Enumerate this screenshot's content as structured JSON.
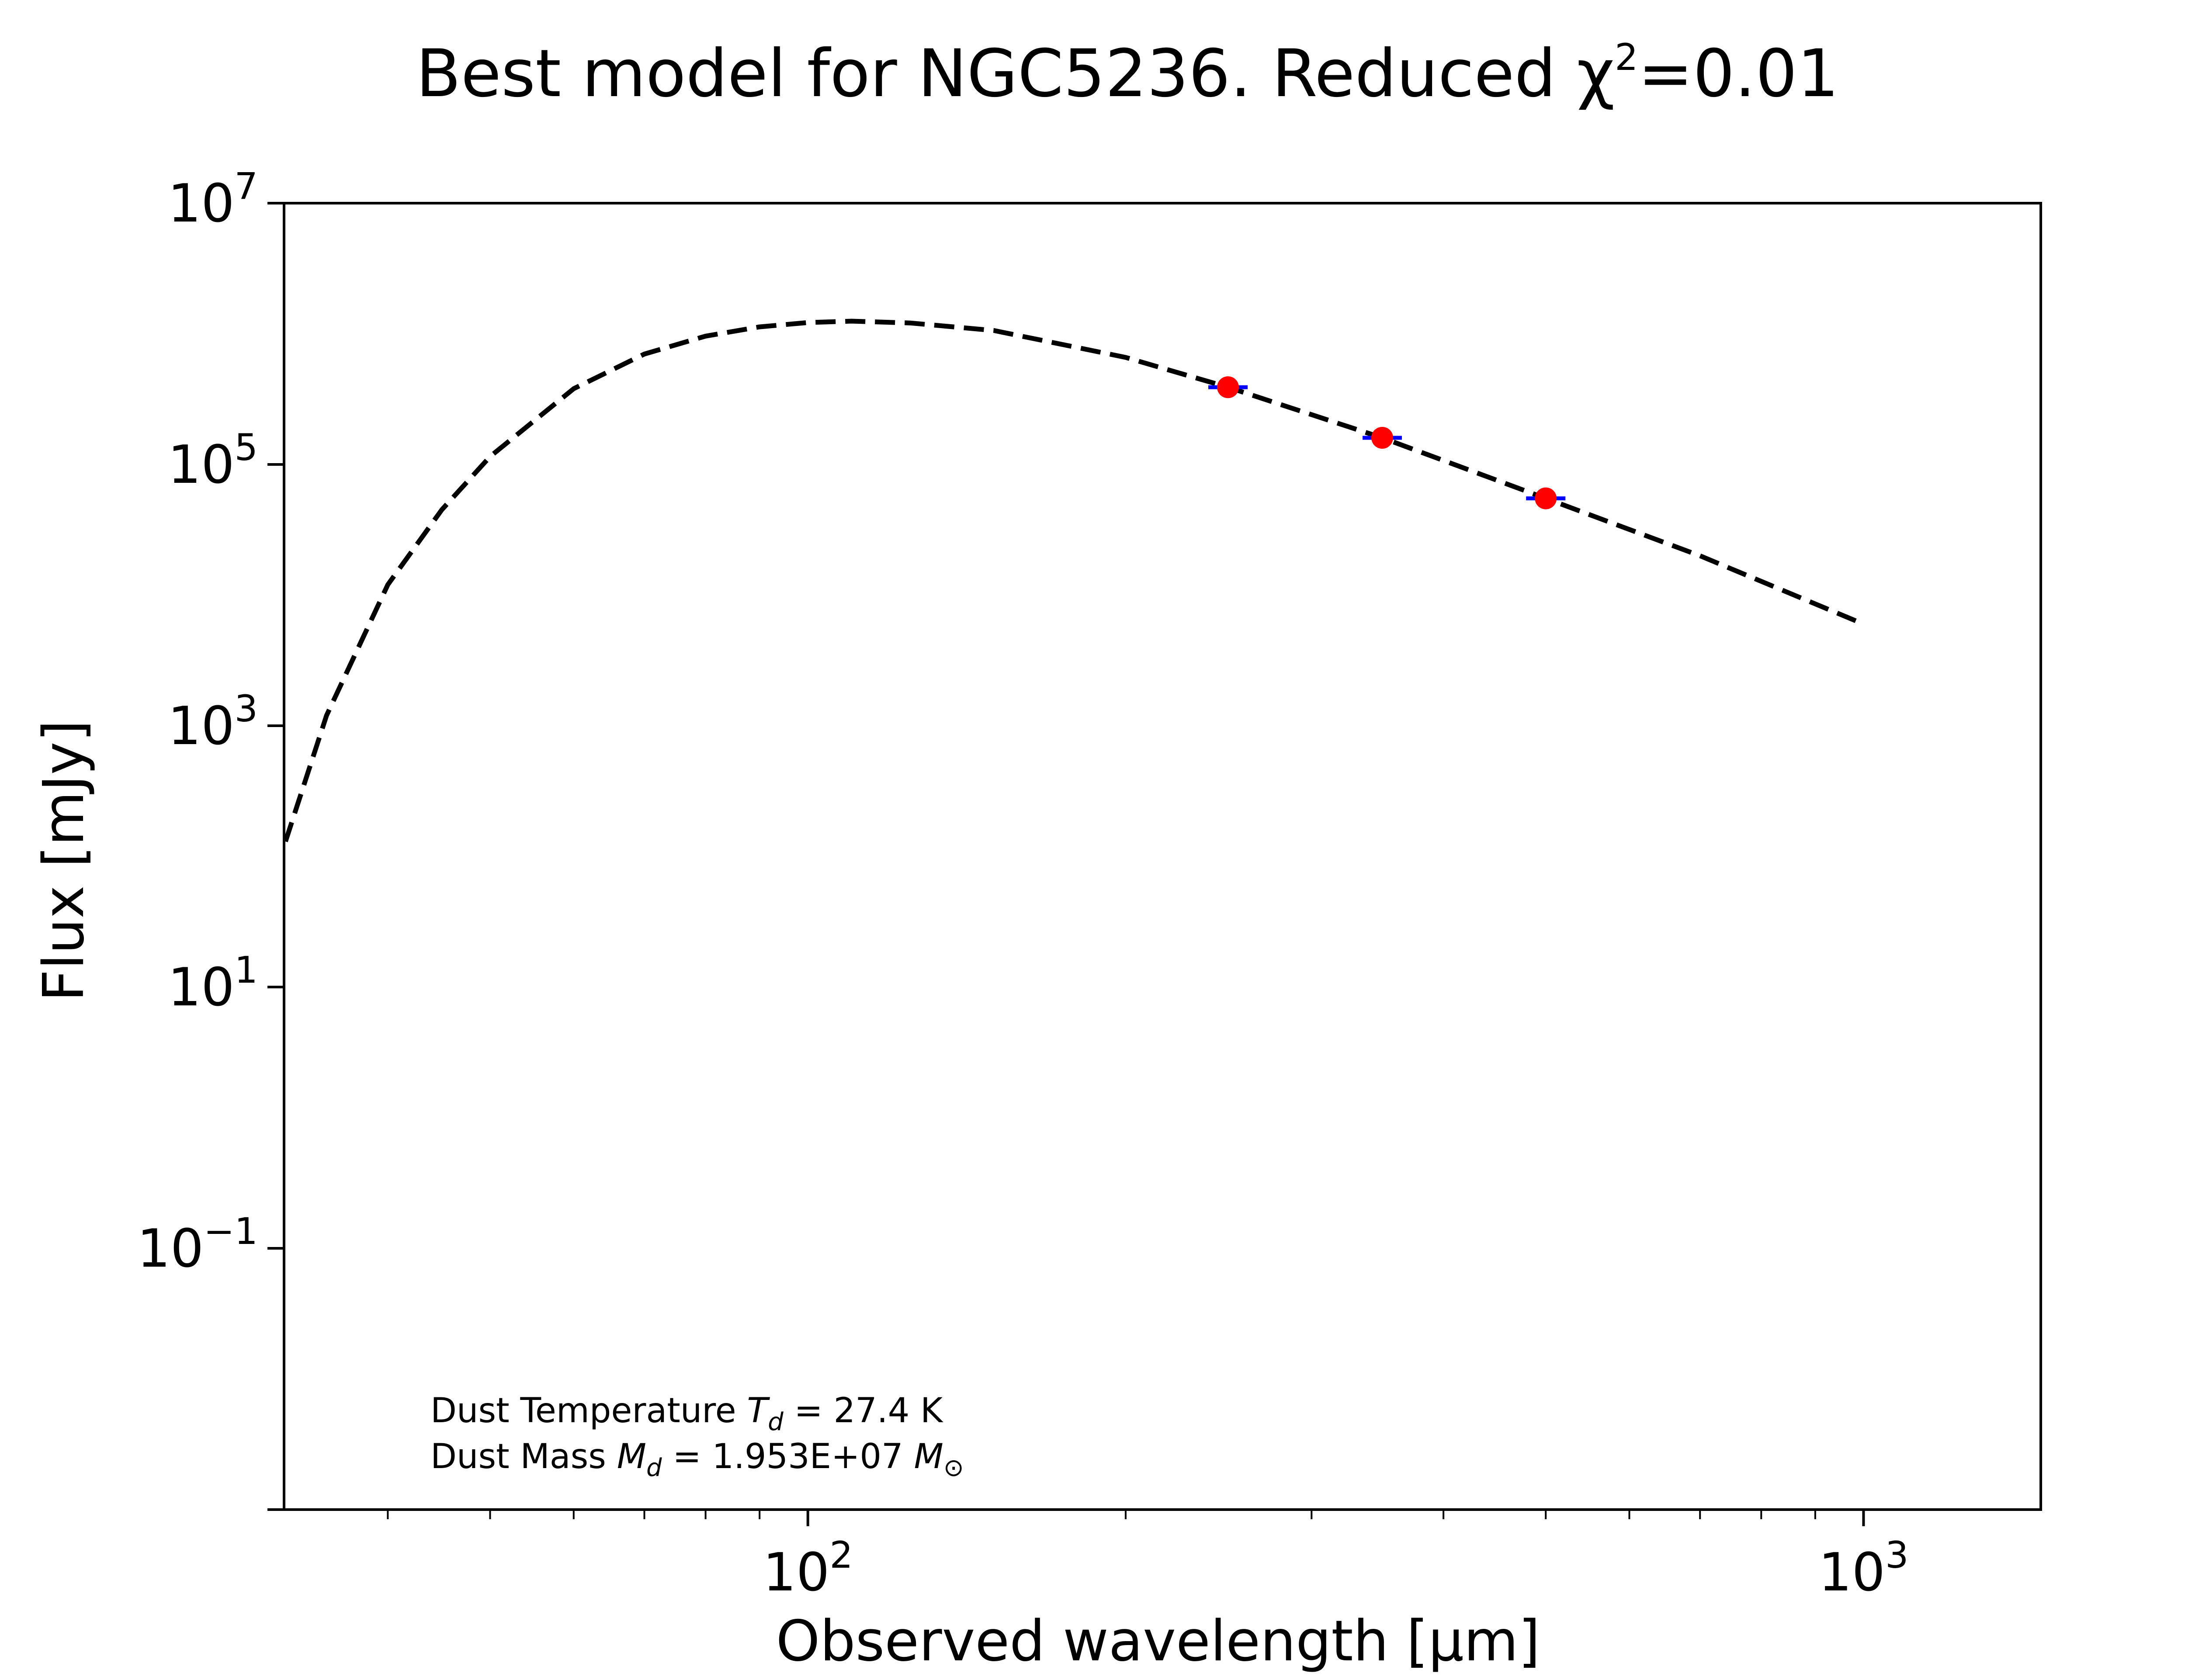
{
  "chart_data": {
    "type": "scatter",
    "title": "Best model for NGC5236. Reduced χ²=0.01",
    "title_parts": {
      "main": "Best model for NGC5236. Reduced χ",
      "sup": "2",
      "tail": "=0.01"
    },
    "xlabel": "Observed wavelength [μm]",
    "ylabel": "Flux [mJy]",
    "x_scale": "log",
    "y_scale": "log",
    "xlim": [
      31.9,
      1472
    ],
    "ylim": [
      0.001,
      10000000
    ],
    "grid": false,
    "x_ticks": [
      {
        "value": 100,
        "base": "10",
        "exp": "2"
      },
      {
        "value": 1000,
        "base": "10",
        "exp": "3"
      }
    ],
    "x_minor_ticks": [
      40,
      50,
      60,
      70,
      80,
      90,
      200,
      300,
      400,
      500,
      600,
      700,
      800,
      900
    ],
    "y_ticks": [
      {
        "value": 10000000,
        "base": "10",
        "exp": "7"
      },
      {
        "value": 100000,
        "base": "10",
        "exp": "5"
      },
      {
        "value": 1000,
        "base": "10",
        "exp": "3"
      },
      {
        "value": 10,
        "base": "10",
        "exp": "1"
      },
      {
        "value": 0.1,
        "base": "10",
        "exp": "−1"
      }
    ],
    "model_curve": {
      "style": "dashed",
      "color": "#000000",
      "x": [
        32,
        35,
        40,
        45,
        50,
        60,
        70,
        80,
        90,
        100,
        110,
        125,
        150,
        200,
        250,
        350,
        500,
        700,
        1000
      ],
      "y": [
        130,
        1200,
        12000,
        45000,
        115000,
        380000,
        700000,
        960000,
        1130000,
        1220000,
        1250000,
        1210000,
        1060000,
        660000,
        390000,
        160000,
        55000,
        20000,
        6000
      ]
    },
    "series": [
      {
        "marker_color": "#ff0000",
        "errorbar_color": "#0000ff",
        "x": [
          250,
          350,
          500
        ],
        "y": [
          390000,
          160000,
          55000
        ]
      }
    ],
    "annotations": [
      {
        "prefix": "Dust Temperature ",
        "sym": "T",
        "sub": "d",
        "rest": " = 27.4 K"
      },
      {
        "prefix": "Dust Mass ",
        "sym": "M",
        "sub": "d",
        "rest": " = 1.953E+07 ",
        "sym2": "M",
        "sub2": "⊙"
      }
    ]
  }
}
